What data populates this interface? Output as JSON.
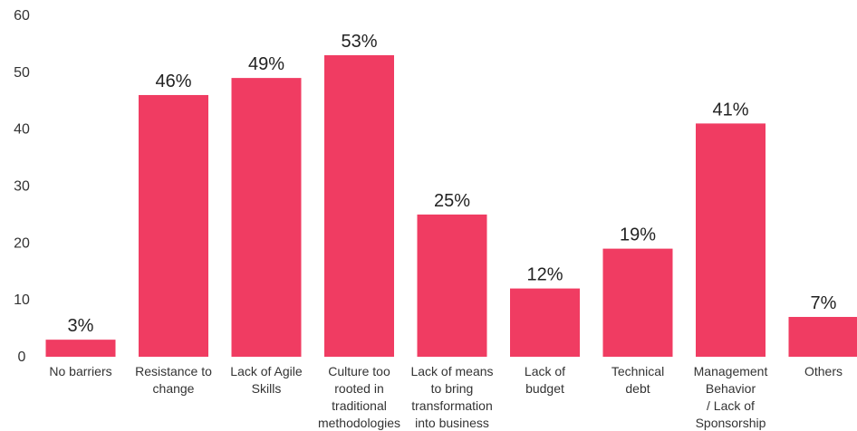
{
  "chart_data": {
    "type": "bar",
    "categories": [
      [
        "No barriers"
      ],
      [
        "Resistance to",
        "change"
      ],
      [
        "Lack of Agile",
        "Skills"
      ],
      [
        "Culture too",
        "rooted in",
        "traditional",
        "methodologies"
      ],
      [
        "Lack of means",
        "to bring",
        "transformation",
        "into business"
      ],
      [
        "Lack of",
        "budget"
      ],
      [
        "Technical",
        "debt"
      ],
      [
        "Management",
        "Behavior",
        "/ Lack of",
        "Sponsorship"
      ],
      [
        "Others"
      ]
    ],
    "values": [
      3,
      46,
      49,
      53,
      25,
      12,
      19,
      41,
      7
    ],
    "data_labels": [
      "3%",
      "46%",
      "49%",
      "53%",
      "25%",
      "12%",
      "19%",
      "41%",
      "7%"
    ],
    "yticks": [
      "0",
      "10",
      "20",
      "30",
      "40",
      "50",
      "60"
    ],
    "ylim": [
      0,
      60
    ],
    "grid": false,
    "bar_color": "#f03c62"
  }
}
